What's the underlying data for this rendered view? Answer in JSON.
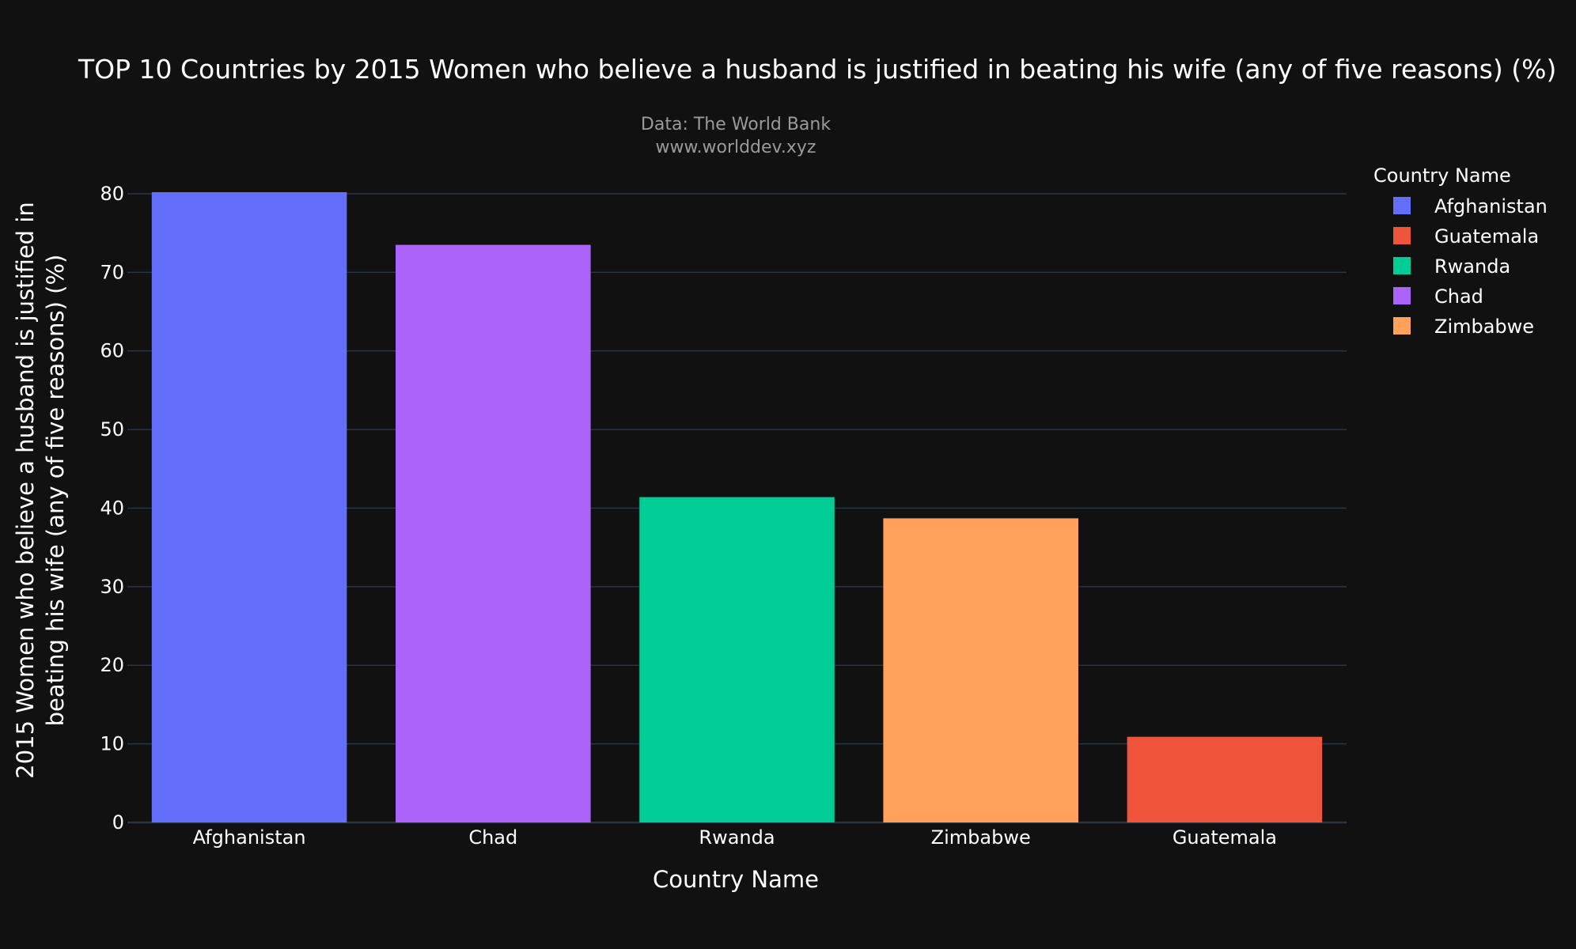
{
  "chart_data": {
    "type": "bar",
    "title": "TOP 10 Countries by 2015 Women who believe a husband is justified in beating his wife (any of five reasons) (%)",
    "subtitle_lines": [
      "Data: The World Bank",
      "www.worlddev.xyz"
    ],
    "xlabel": "Country Name",
    "ylabel_lines": [
      "2015 Women who believe a husband is justified in",
      "beating his wife (any of five reasons) (%)"
    ],
    "categories": [
      "Afghanistan",
      "Chad",
      "Rwanda",
      "Zimbabwe",
      "Guatemala"
    ],
    "values": [
      80.2,
      73.5,
      41.4,
      38.7,
      10.9
    ],
    "bar_colors": [
      "#636efa",
      "#ab63fa",
      "#00cc96",
      "#ffa15a",
      "#ef553b"
    ],
    "ylim": [
      0,
      80.2
    ],
    "yticks": [
      0,
      10,
      20,
      30,
      40,
      50,
      60,
      70,
      80
    ],
    "grid": true,
    "legend": {
      "title": "Country Name",
      "placement": "top-right",
      "items": [
        {
          "label": "Afghanistan",
          "color": "#636efa"
        },
        {
          "label": "Guatemala",
          "color": "#ef553b"
        },
        {
          "label": "Rwanda",
          "color": "#00cc96"
        },
        {
          "label": "Chad",
          "color": "#ab63fa"
        },
        {
          "label": "Zimbabwe",
          "color": "#ffa15a"
        }
      ]
    },
    "colors": {
      "background": "#111111",
      "grid": "#283442",
      "text": "#ffffff",
      "subtitle": "#9a9a9a"
    }
  }
}
